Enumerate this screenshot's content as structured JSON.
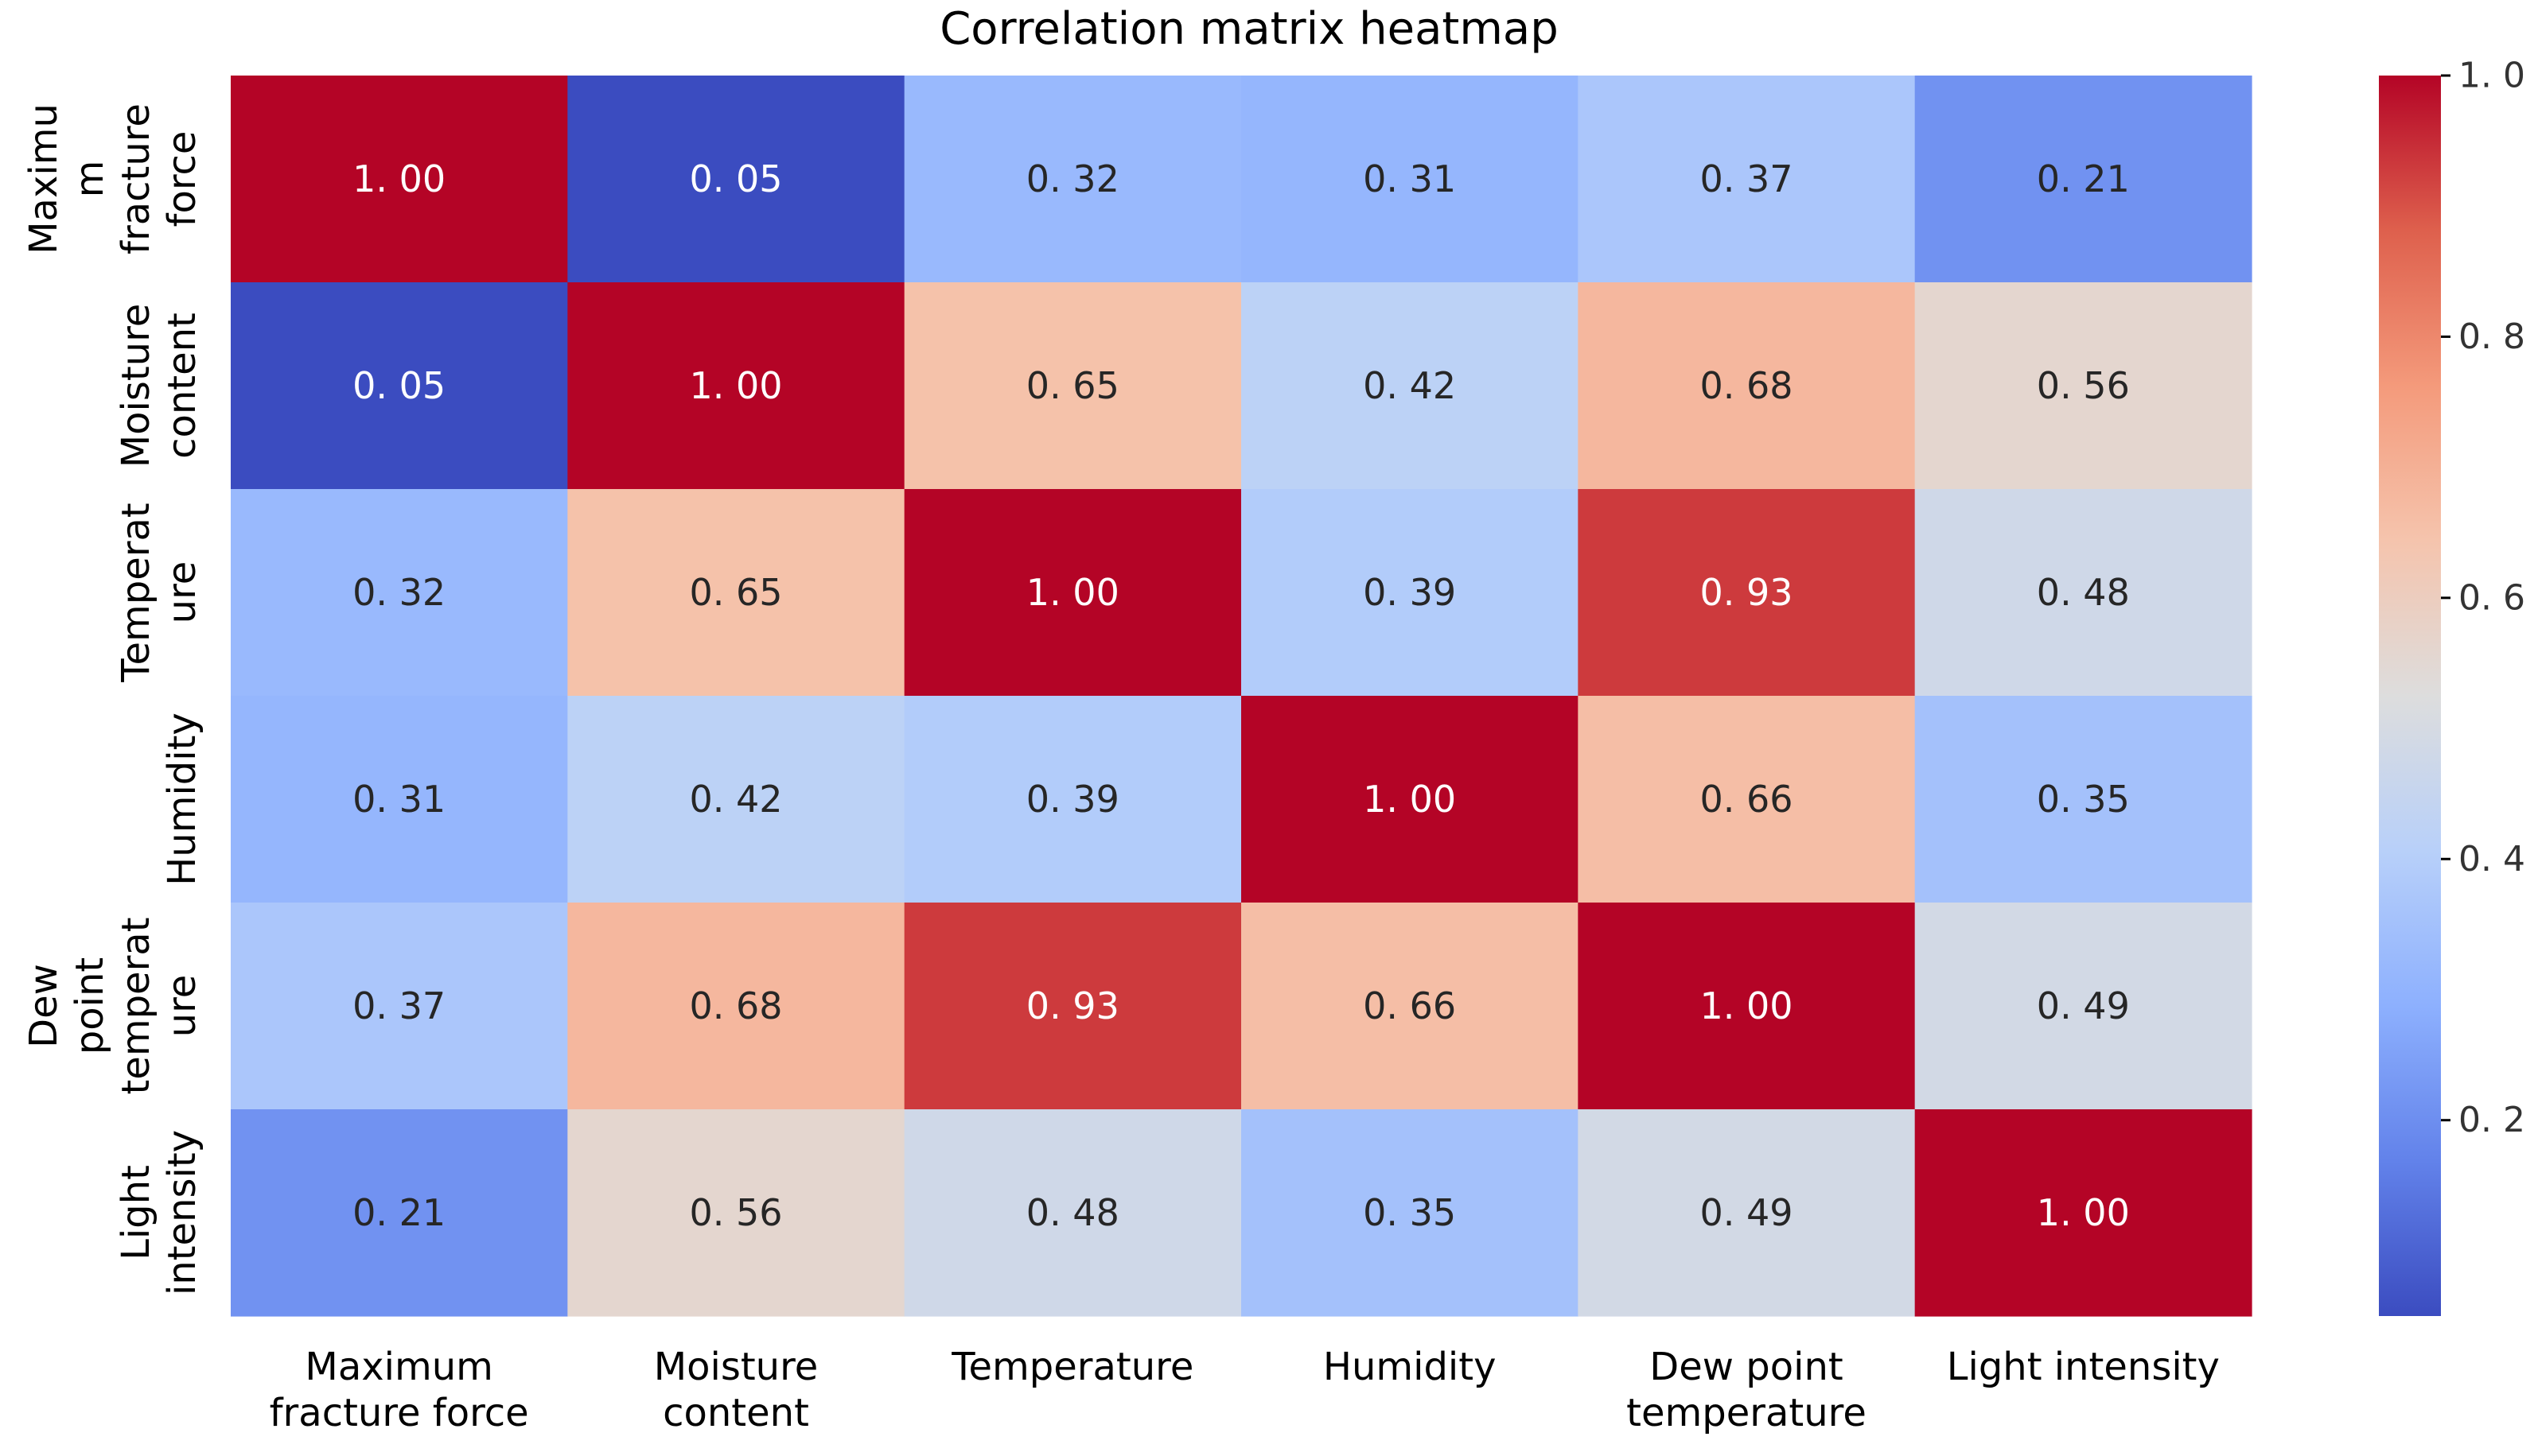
{
  "chart_data": {
    "type": "heatmap",
    "title": "Correlation matrix heatmap",
    "x_labels": [
      [
        "Maximum",
        "fracture force"
      ],
      [
        "Moisture",
        "content"
      ],
      [
        "Temperature"
      ],
      [
        "Humidity"
      ],
      [
        "Dew point",
        "temperature"
      ],
      [
        "Light intensity"
      ]
    ],
    "y_labels": [
      [
        "Maximu",
        "m",
        "fracture",
        "force"
      ],
      [
        "Moisture",
        "content"
      ],
      [
        "Temperat",
        "ure"
      ],
      [
        "Humidity"
      ],
      [
        "Dew",
        "point",
        "temperat",
        "ure"
      ],
      [
        "Light",
        "intensity"
      ]
    ],
    "values": [
      [
        1.0,
        0.05,
        0.32,
        0.31,
        0.37,
        0.21
      ],
      [
        0.05,
        1.0,
        0.65,
        0.42,
        0.68,
        0.56
      ],
      [
        0.32,
        0.65,
        1.0,
        0.39,
        0.93,
        0.48
      ],
      [
        0.31,
        0.42,
        0.39,
        1.0,
        0.66,
        0.35
      ],
      [
        0.37,
        0.68,
        0.93,
        0.66,
        1.0,
        0.49
      ],
      [
        0.21,
        0.56,
        0.48,
        0.35,
        0.49,
        1.0
      ]
    ],
    "cell_labels": [
      [
        "1. 00",
        "0. 05",
        "0. 32",
        "0. 31",
        "0. 37",
        "0. 21"
      ],
      [
        "0. 05",
        "1. 00",
        "0. 65",
        "0. 42",
        "0. 68",
        "0. 56"
      ],
      [
        "0. 32",
        "0. 65",
        "1. 00",
        "0. 39",
        "0. 93",
        "0. 48"
      ],
      [
        "0. 31",
        "0. 42",
        "0. 39",
        "1. 00",
        "0. 66",
        "0. 35"
      ],
      [
        "0. 37",
        "0. 68",
        "0. 93",
        "0. 66",
        "1. 00",
        "0. 49"
      ],
      [
        "0. 21",
        "0. 56",
        "0. 48",
        "0. 35",
        "0. 49",
        "1. 00"
      ]
    ],
    "colormap": "coolwarm",
    "vmin": 0.05,
    "vmax": 1.0,
    "colorbar": {
      "ticks": [
        0.2,
        0.4,
        0.6,
        0.8,
        1.0
      ],
      "tick_labels": [
        "0. 2",
        "0. 4",
        "0. 6",
        "0. 8",
        "1. 0"
      ]
    },
    "colors": {
      "low": "#3b4cc0",
      "mid": "#dddddd",
      "high": "#b40426",
      "text_dark": "#262626",
      "text_light": "#ffffff"
    }
  }
}
